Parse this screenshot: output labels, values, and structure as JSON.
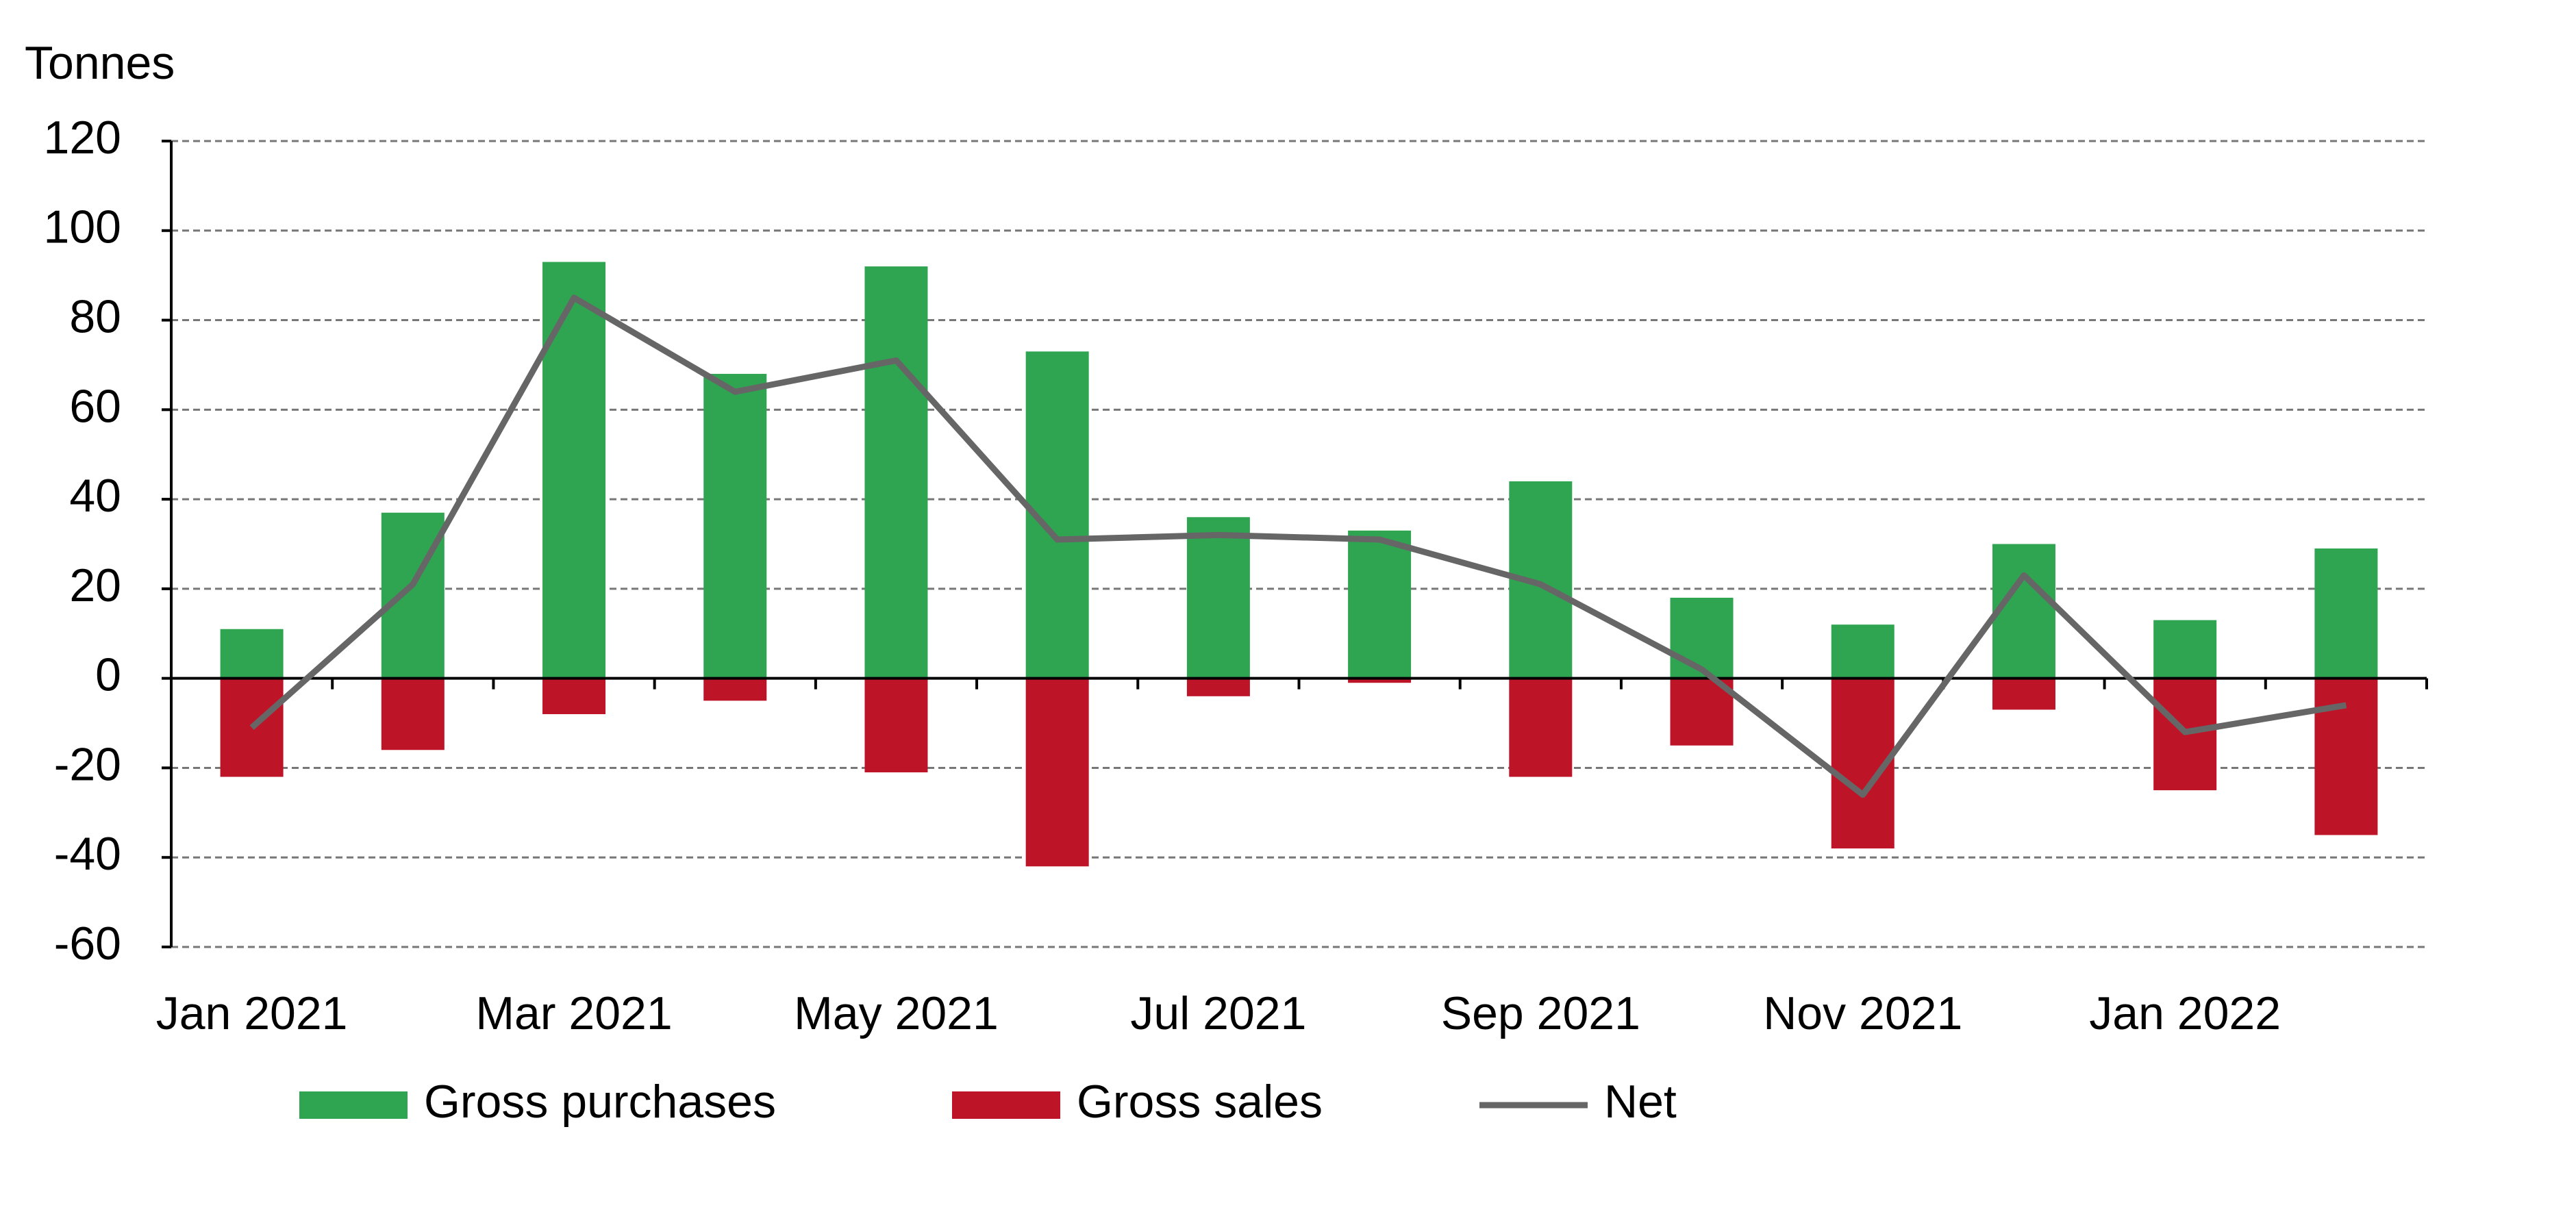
{
  "chart_data": {
    "type": "bar",
    "y_label": "Tonnes",
    "categories": [
      "Jan 2021",
      null,
      "Mar 2021",
      null,
      "May 2021",
      null,
      "Jul 2021",
      null,
      "Sep 2021",
      null,
      "Nov 2021",
      null,
      "Jan 2022",
      null
    ],
    "series": [
      {
        "name": "Gross purchases",
        "type": "bar",
        "color": "#2fa552",
        "values": [
          11,
          37,
          93,
          68,
          92,
          73,
          36,
          33,
          44,
          18,
          12,
          30,
          13,
          29
        ]
      },
      {
        "name": "Gross sales",
        "type": "bar",
        "color": "#be1428",
        "values": [
          -22,
          -16,
          -8,
          -5,
          -21,
          -42,
          -4,
          -1,
          -22,
          -15,
          -38,
          -7,
          -25,
          -35
        ]
      },
      {
        "name": "Net",
        "type": "line",
        "color": "#666666",
        "values": [
          -11,
          21,
          85,
          64,
          71,
          31,
          32,
          31,
          21,
          2,
          -26,
          23,
          -12,
          -6
        ]
      }
    ],
    "ylim": [
      -60,
      120
    ],
    "yticks": [
      -60,
      -40,
      -20,
      0,
      20,
      40,
      60,
      80,
      100,
      120
    ],
    "grid": true,
    "legend": "bottom"
  }
}
